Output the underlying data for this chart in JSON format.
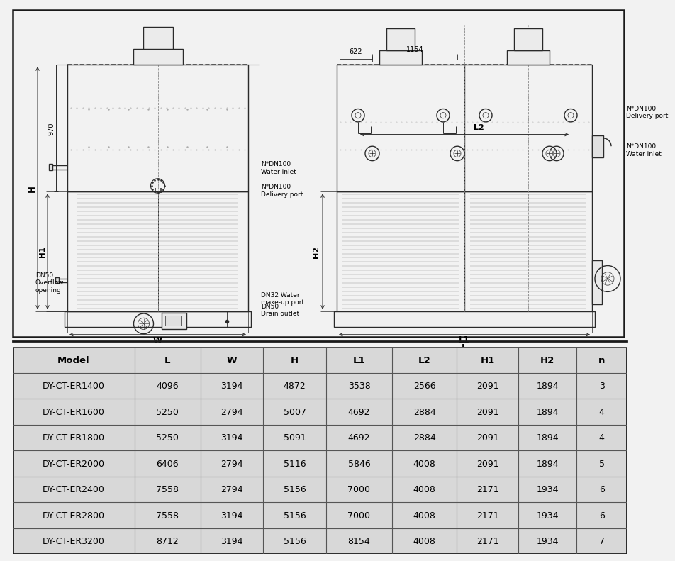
{
  "bg_color": "#f2f2f2",
  "drawing_bg": "#ffffff",
  "table_bg": "#d8d8d8",
  "lc": "#2a2a2a",
  "lc_light": "#666666",
  "lc_dot": "#444444",
  "tc": "#000000",
  "table_columns": [
    "Model",
    "L",
    "W",
    "H",
    "L1",
    "L2",
    "H1",
    "H2",
    "n"
  ],
  "table_data": [
    [
      "DY-CT-ER1400",
      "4096",
      "3194",
      "4872",
      "3538",
      "2566",
      "2091",
      "1894",
      "3"
    ],
    [
      "DY-CT-ER1600",
      "5250",
      "2794",
      "5007",
      "4692",
      "2884",
      "2091",
      "1894",
      "4"
    ],
    [
      "DY-CT-ER1800",
      "5250",
      "3194",
      "5091",
      "4692",
      "2884",
      "2091",
      "1894",
      "4"
    ],
    [
      "DY-CT-ER2000",
      "6406",
      "2794",
      "5116",
      "5846",
      "4008",
      "2091",
      "1894",
      "5"
    ],
    [
      "DY-CT-ER2400",
      "7558",
      "2794",
      "5156",
      "7000",
      "4008",
      "2171",
      "1934",
      "6"
    ],
    [
      "DY-CT-ER2800",
      "7558",
      "3194",
      "5156",
      "7000",
      "4008",
      "2171",
      "1934",
      "6"
    ],
    [
      "DY-CT-ER3200",
      "8712",
      "3194",
      "5156",
      "8154",
      "4008",
      "2171",
      "1934",
      "7"
    ]
  ],
  "label_H": "H",
  "label_H1": "H1",
  "label_H2": "H2",
  "label_W": "W",
  "label_L": "L",
  "label_L1": "L1",
  "label_L2": "L2",
  "dim_970": "970",
  "label_622": "622",
  "label_1154": "1154",
  "label_DN50_overflow": "DN50\nOverflow\nopening",
  "label_DN32_water": "DN32 Water\nmake-up port",
  "label_DN50_drain": "DN50\nDrain outlet",
  "label_N_DN100_water": "N*DN100\nWater inlet",
  "label_N_DN100_delivery": "N*DN100\nDelivery port"
}
